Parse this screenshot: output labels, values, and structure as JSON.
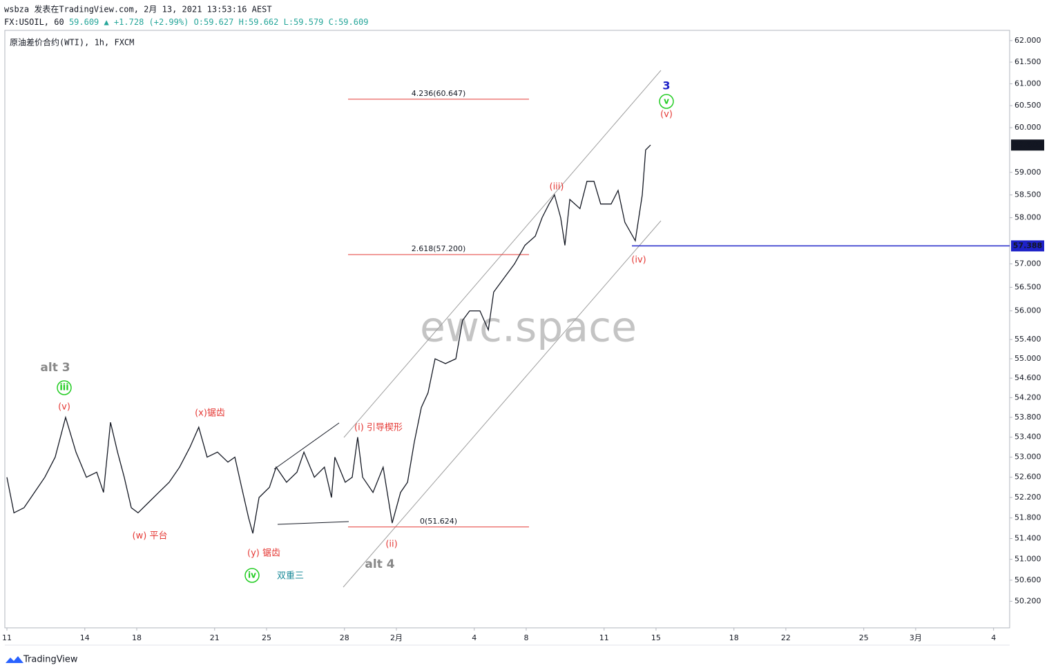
{
  "header": {
    "line1": "wsbza 发表在TradingView.com, 2月 13, 2021 13:53:16 AEST",
    "symbol": "FX:USOIL, 60",
    "quote": "59.609 ▲ +1.728 (+2.99%)",
    "ohlc": "O:59.627 H:59.662 L:59.579 C:59.609",
    "instrument": "原油差价合约(WTI), 1h, FXCM",
    "watermark": "ewc.space",
    "brand": "TradingView"
  },
  "chart_data": {
    "type": "line",
    "log_scale": true,
    "grid": false,
    "series": [
      {
        "name": "USOIL",
        "color": "#131722",
        "x": [
          0,
          0.27,
          0.66,
          1.06,
          1.46,
          1.86,
          2.26,
          2.66,
          3.06,
          3.46,
          3.72,
          3.99,
          4.26,
          4.52,
          4.79,
          5.05,
          5.45,
          5.85,
          6.25,
          6.65,
          7.05,
          7.39,
          7.71,
          8.11,
          8.51,
          8.78,
          9.04,
          9.31,
          9.47,
          9.71,
          10.11,
          10.37,
          10.77,
          11.17,
          11.44,
          11.84,
          12.23,
          12.5,
          12.63,
          13.03,
          13.3,
          13.51,
          13.7,
          14.1,
          14.49,
          14.84,
          15.16,
          15.43,
          15.69,
          15.96,
          16.22,
          16.49,
          16.89,
          17.29,
          17.55,
          17.82,
          18.22,
          18.54,
          18.75,
          19.15,
          19.55,
          19.95,
          20.35,
          20.61,
          20.88,
          21.09,
          21.33,
          21.49,
          21.68,
          22.07,
          22.34,
          22.61,
          22.87,
          23.27,
          23.54,
          23.8,
          24.2,
          24.47,
          24.6,
          24.79
        ],
        "values": [
          52.6,
          51.9,
          52.0,
          52.3,
          52.6,
          53.0,
          53.8,
          53.1,
          52.6,
          52.7,
          52.3,
          53.7,
          53.1,
          52.6,
          52.0,
          51.9,
          52.1,
          52.3,
          52.5,
          52.8,
          53.2,
          53.6,
          53.0,
          53.1,
          52.9,
          53.0,
          52.4,
          51.8,
          51.5,
          52.2,
          52.4,
          52.8,
          52.5,
          52.7,
          53.1,
          52.6,
          52.8,
          52.2,
          53.0,
          52.5,
          52.6,
          53.4,
          52.6,
          52.3,
          52.8,
          51.7,
          52.3,
          52.5,
          53.3,
          54.0,
          54.3,
          55.0,
          54.9,
          55.0,
          55.8,
          56.0,
          56.0,
          55.6,
          56.4,
          56.7,
          57.0,
          57.4,
          57.6,
          58.0,
          58.3,
          58.5,
          58.0,
          57.4,
          58.4,
          58.2,
          58.8,
          58.8,
          58.3,
          58.3,
          58.6,
          57.9,
          57.5,
          58.5,
          59.5,
          59.609
        ]
      }
    ],
    "xlim": [
      -0.08,
      38.62
    ],
    "xticks": [
      {
        "value": 0,
        "label": "11"
      },
      {
        "value": 3,
        "label": "14"
      },
      {
        "value": 5,
        "label": "18"
      },
      {
        "value": 8,
        "label": "21"
      },
      {
        "value": 10,
        "label": "25"
      },
      {
        "value": 13,
        "label": "28"
      },
      {
        "value": 15,
        "label": "2月"
      },
      {
        "value": 18,
        "label": "4"
      },
      {
        "value": 20,
        "label": "8"
      },
      {
        "value": 23,
        "label": "11"
      },
      {
        "value": 25,
        "label": "15"
      },
      {
        "value": 28,
        "label": "18"
      },
      {
        "value": 30,
        "label": "22"
      },
      {
        "value": 33,
        "label": "25"
      },
      {
        "value": 35,
        "label": "3月"
      },
      {
        "value": 38,
        "label": "4"
      }
    ],
    "ylim": [
      49.7,
      62.24
    ],
    "yticks": [
      {
        "value": 62,
        "label": "62.000"
      },
      {
        "value": 61.5,
        "label": "61.500"
      },
      {
        "value": 61,
        "label": "61.000"
      },
      {
        "value": 60.5,
        "label": "60.500"
      },
      {
        "value": 60,
        "label": "60.000"
      },
      {
        "value": 59,
        "label": "59.000"
      },
      {
        "value": 58.5,
        "label": "58.500"
      },
      {
        "value": 58,
        "label": "58.000"
      },
      {
        "value": 57,
        "label": "57.000"
      },
      {
        "value": 56.5,
        "label": "56.500"
      },
      {
        "value": 56,
        "label": "56.000"
      },
      {
        "value": 55.4,
        "label": "55.400"
      },
      {
        "value": 55,
        "label": "55.000"
      },
      {
        "value": 54.6,
        "label": "54.600"
      },
      {
        "value": 54.2,
        "label": "54.200"
      },
      {
        "value": 53.8,
        "label": "53.800"
      },
      {
        "value": 53.4,
        "label": "53.400"
      },
      {
        "value": 53,
        "label": "53.000"
      },
      {
        "value": 52.6,
        "label": "52.600"
      },
      {
        "value": 52.2,
        "label": "52.200"
      },
      {
        "value": 51.8,
        "label": "51.800"
      },
      {
        "value": 51.4,
        "label": "51.400"
      },
      {
        "value": 51,
        "label": "51.000"
      },
      {
        "value": 50.6,
        "label": "50.600"
      },
      {
        "value": 50.2,
        "label": "50.200"
      }
    ],
    "last_price": {
      "value": 59.609,
      "color": "#131722"
    },
    "level_line": {
      "value": 57.388,
      "label": "57.388",
      "color": "#1e22c8"
    },
    "fib_levels": [
      {
        "value": 60.647,
        "label": "4.236(60.647)"
      },
      {
        "value": 57.2,
        "label": "2.618(57.200)"
      },
      {
        "value": 51.624,
        "label": "0(51.624)"
      }
    ],
    "annotations": [
      {
        "text": "alt 3",
        "color": "#888888"
      },
      {
        "text": "iii",
        "color": "#22cc22",
        "circle": true
      },
      {
        "text": "(v)",
        "color": "#e53935"
      },
      {
        "text": "(w) 平台",
        "color": "#e53935"
      },
      {
        "text": "(x)锯齿",
        "color": "#e53935"
      },
      {
        "text": "(y) 锯齿",
        "color": "#e53935"
      },
      {
        "text": "iv",
        "color": "#22cc22",
        "circle": true
      },
      {
        "text": "双重三",
        "color": "#1a8a99"
      },
      {
        "text": "(i) 引导楔形",
        "color": "#e53935"
      },
      {
        "text": "(ii)",
        "color": "#e53935"
      },
      {
        "text": "alt 4",
        "color": "#888888"
      },
      {
        "text": "(iii)",
        "color": "#e53935"
      },
      {
        "text": "(iv)",
        "color": "#e53935"
      },
      {
        "text": "3",
        "color": "#1e22c8"
      },
      {
        "text": "v",
        "color": "#22cc22",
        "circle": true
      },
      {
        "text": "(v)",
        "color": "#e53935"
      }
    ]
  }
}
